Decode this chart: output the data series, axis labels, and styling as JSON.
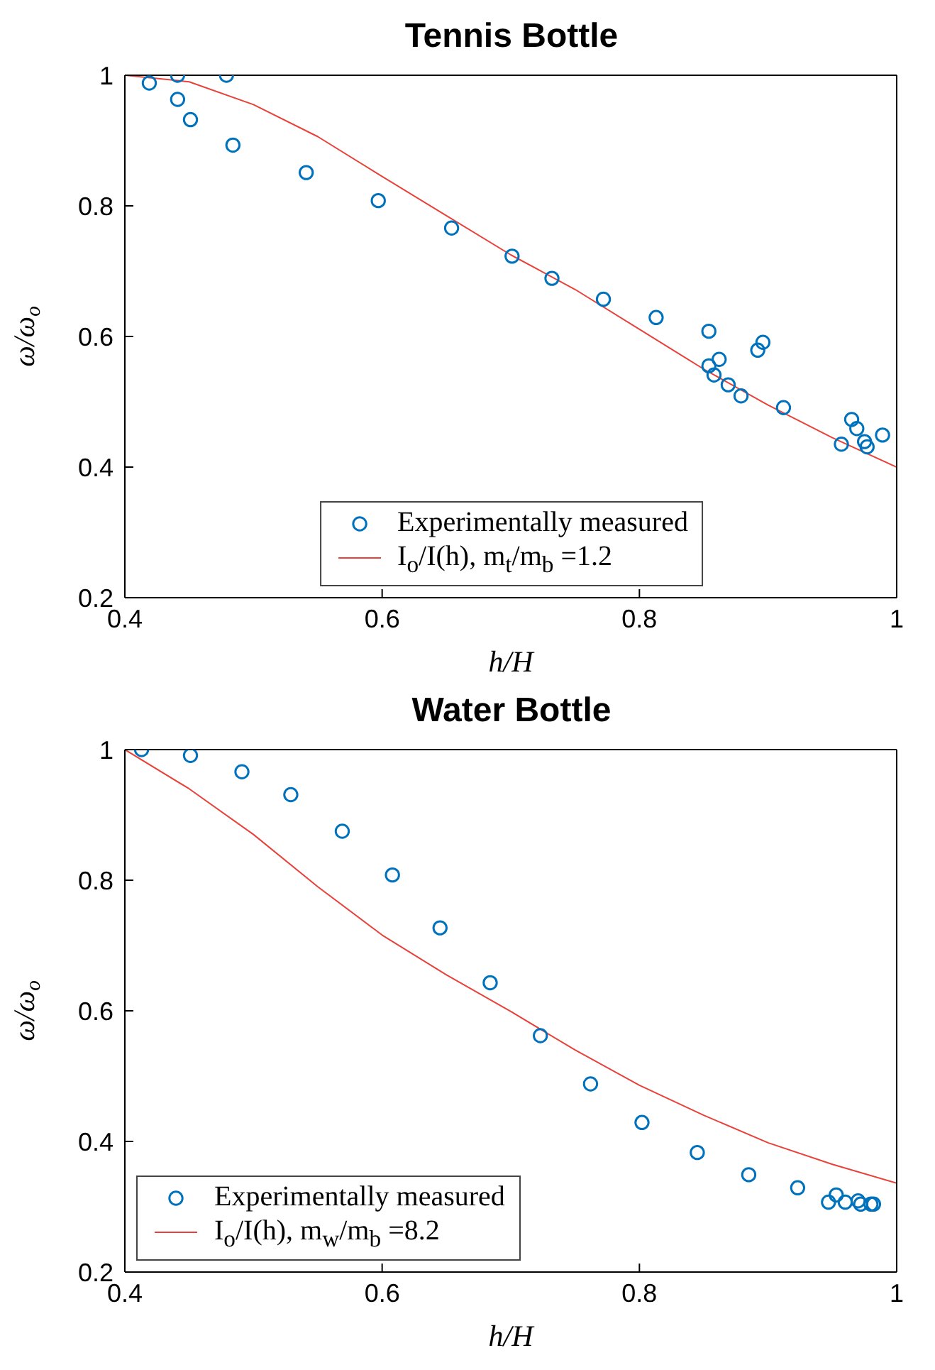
{
  "chart_data": [
    {
      "type": "scatter",
      "title": "Tennis Bottle",
      "xlabel": "h/H",
      "ylabel": "ω/ω$_{o}$",
      "xlim": [
        0.4,
        1
      ],
      "xticks": [
        0.4,
        0.6,
        0.8,
        1
      ],
      "ylim": [
        0.2,
        1
      ],
      "yticks": [
        0.2,
        0.4,
        0.6,
        0.8,
        1
      ],
      "legend": "bottom",
      "series": [
        {
          "name": "Experimentally measured",
          "marker": "circle",
          "color": "#0072bd",
          "x": [
            0.419,
            0.441,
            0.479,
            0.441,
            0.451,
            0.484,
            0.541,
            0.597,
            0.654,
            0.701,
            0.732,
            0.772,
            0.813,
            0.854,
            0.854,
            0.862,
            0.858,
            0.869,
            0.879,
            0.892,
            0.896,
            0.912,
            0.957,
            0.965,
            0.969,
            0.975,
            0.977,
            0.989
          ],
          "values": [
            0.988,
            1.0,
            1.0,
            0.963,
            0.932,
            0.893,
            0.851,
            0.808,
            0.766,
            0.723,
            0.689,
            0.657,
            0.629,
            0.608,
            0.555,
            0.565,
            0.541,
            0.526,
            0.509,
            0.579,
            0.591,
            0.491,
            0.435,
            0.473,
            0.459,
            0.439,
            0.431,
            0.449
          ]
        },
        {
          "name": "I$_{o}$/I(h),  m$_{t}$/m$_{b}$ =1.2",
          "type": "line",
          "marker": "none",
          "line_style": "solid",
          "color": "#e8413a",
          "x": [
            0.4,
            0.45,
            0.5,
            0.55,
            0.6,
            0.65,
            0.7,
            0.75,
            0.8,
            0.85,
            0.9,
            0.95,
            1.0
          ],
          "values": [
            1.0,
            0.99,
            0.955,
            0.906,
            0.845,
            0.785,
            0.725,
            0.672,
            0.611,
            0.55,
            0.495,
            0.445,
            0.4
          ]
        }
      ]
    },
    {
      "type": "scatter",
      "title": "Water Bottle",
      "xlabel": "h/H",
      "ylabel": "ω/ω$_{o}$",
      "xlim": [
        0.4,
        1
      ],
      "xticks": [
        0.4,
        0.6,
        0.8,
        1
      ],
      "ylim": [
        0.2,
        1
      ],
      "yticks": [
        0.2,
        0.4,
        0.6,
        0.8,
        1
      ],
      "legend": "bottom left",
      "series": [
        {
          "name": "Experimentally measured",
          "marker": "circle",
          "color": "#0072bd",
          "x": [
            0.413,
            0.451,
            0.491,
            0.529,
            0.569,
            0.608,
            0.645,
            0.684,
            0.723,
            0.762,
            0.802,
            0.845,
            0.885,
            0.923,
            0.947,
            0.953,
            0.96,
            0.97,
            0.972,
            0.98,
            0.982
          ],
          "values": [
            1.0,
            0.991,
            0.966,
            0.931,
            0.875,
            0.808,
            0.727,
            0.643,
            0.562,
            0.488,
            0.429,
            0.383,
            0.349,
            0.329,
            0.307,
            0.318,
            0.307,
            0.309,
            0.304,
            0.304,
            0.304
          ]
        },
        {
          "name": "I$_{o}$/I(h),  m$_{w}$/m$_{b}$ =8.2",
          "type": "line",
          "marker": "none",
          "line_style": "solid",
          "color": "#e8413a",
          "x": [
            0.4,
            0.45,
            0.5,
            0.55,
            0.6,
            0.65,
            0.7,
            0.75,
            0.8,
            0.85,
            0.9,
            0.95,
            1.0
          ],
          "values": [
            1.0,
            0.94,
            0.87,
            0.79,
            0.716,
            0.655,
            0.599,
            0.54,
            0.486,
            0.44,
            0.398,
            0.365,
            0.336
          ]
        }
      ]
    }
  ]
}
